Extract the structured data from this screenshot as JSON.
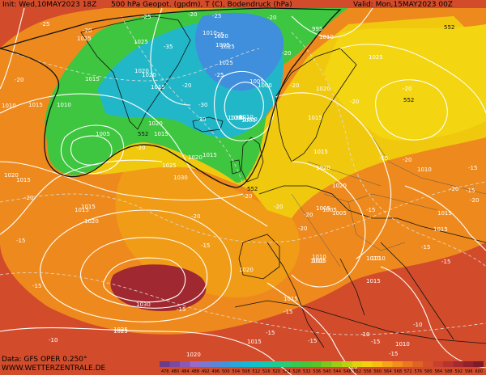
{
  "header": {
    "init": "Init: Wed,10MAY2023 18Z",
    "field": "500 hPa Geopot. (gpdm), T (C), Bodendruck (hPa)",
    "valid": "Valid: Mon,15MAY2023 00Z"
  },
  "footer": {
    "data": "Data: GFS OPER 0.250°",
    "site": "WWW.WETTERZENTRALE.DE"
  },
  "pressure_labels": [
    "1025",
    "1015",
    "1010",
    "1010",
    "1005",
    "1020",
    "1015",
    "1015",
    "1020",
    "1015",
    "1015",
    "1025",
    "1010",
    "1020",
    "1020",
    "1025",
    "1005",
    "1000",
    "1020",
    "1005",
    "1010",
    "1000",
    "1005",
    "995",
    "1010",
    "1025",
    "1020",
    "1015",
    "1015",
    "1020",
    "1010",
    "1025",
    "1030",
    "1015",
    "1020",
    "1005",
    "1030",
    "1025",
    "1005",
    "1020",
    "1015",
    "1015",
    "1015",
    "1010",
    "1015",
    "1020",
    "1010",
    "1015",
    "1015",
    "1020",
    "1010",
    "1005",
    "1025",
    "1020",
    "1000",
    "1010",
    "1015",
    "1010",
    "1025",
    "1015",
    "1020"
  ],
  "temp_labels": [
    "-25",
    "-20",
    "-20",
    "-25",
    "-20",
    "-25",
    "-20",
    "-25",
    "-20",
    "-25",
    "-30",
    "-35",
    "-30",
    "-30",
    "-20",
    "-20",
    "-20",
    "-20",
    "-20",
    "-20",
    "-20",
    "-20",
    "-20",
    "-20",
    "-15",
    "-15",
    "-15",
    "-20",
    "-15",
    "-15",
    "-15",
    "-20",
    "-20",
    "-15",
    "-15",
    "-15",
    "-10",
    "-10",
    "-10",
    "-15",
    "-15",
    "-15",
    "-10",
    "-15",
    "-15",
    "-20",
    "-20",
    "-15"
  ],
  "geopot_labels": [
    "552",
    "552",
    "552",
    "552"
  ],
  "legend": {
    "ticks": [
      "476",
      "480",
      "484",
      "488",
      "492",
      "496",
      "500",
      "504",
      "508",
      "512",
      "516",
      "520",
      "524",
      "528",
      "532",
      "536",
      "540",
      "544",
      "548",
      "552",
      "556",
      "560",
      "564",
      "568",
      "572",
      "576",
      "580",
      "584",
      "588",
      "592",
      "596",
      "600"
    ],
    "colors": [
      "#6e3a8a",
      "#7d48a0",
      "#8c58b4",
      "#9b6ac6",
      "#7a78d0",
      "#5b86d8",
      "#3f95dc",
      "#27a6dc",
      "#17b6d6",
      "#10c2c8",
      "#13c8b0",
      "#1ccb92",
      "#2acb72",
      "#37c852",
      "#44c438",
      "#58c42a",
      "#7ac81f",
      "#9ccc18",
      "#bccf14",
      "#dcd212",
      "#f2d00f",
      "#f7bd12",
      "#f5a616",
      "#f08f1b",
      "#ea7820",
      "#e06225",
      "#d54f2a",
      "#c6402d",
      "#b63430",
      "#a52a30",
      "#93212d",
      "#7f1a29"
    ]
  }
}
